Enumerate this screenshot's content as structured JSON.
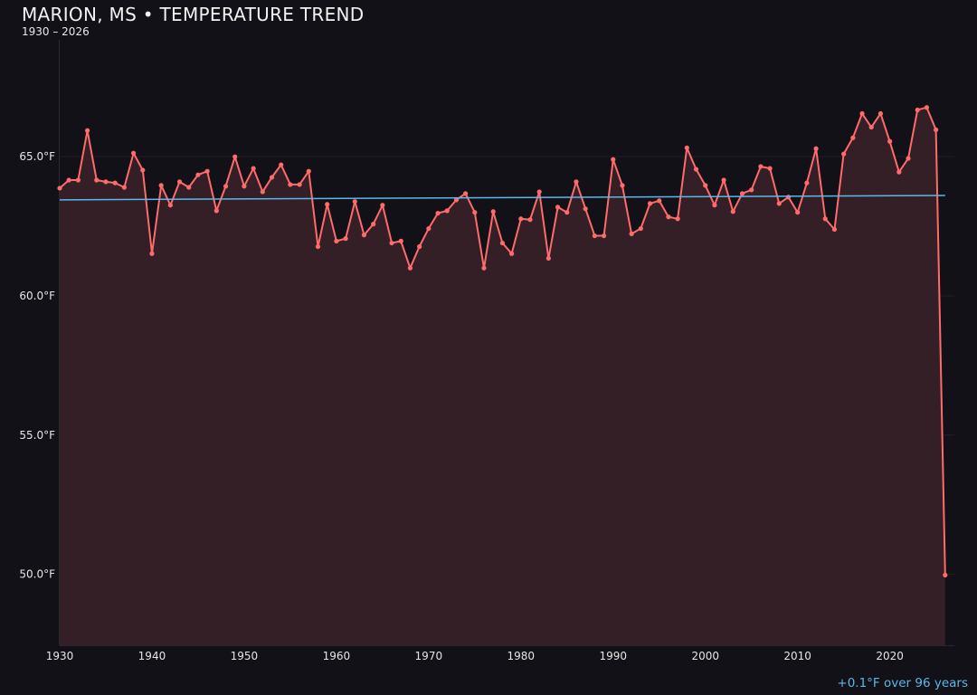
{
  "chart_data": {
    "type": "line",
    "title": "MARION, MS • TEMPERATURE TREND",
    "subtitle": "1930 – 2026",
    "annotation": "+0.1°F over 96 years",
    "xlabel": "",
    "ylabel": "",
    "xlim": [
      1930,
      2027
    ],
    "ylim": [
      47.45,
      69.2
    ],
    "grid": true,
    "x_ticks": [
      1930,
      1940,
      1950,
      1960,
      1970,
      1980,
      1990,
      2000,
      2010,
      2020
    ],
    "y_ticks": [
      50,
      55,
      60,
      65
    ],
    "y_tick_labels": [
      "50.0°F",
      "55.0°F",
      "60.0°F",
      "65.0°F"
    ],
    "colors": {
      "series": "#ff6b6b",
      "fill": "#351f26",
      "trend": "#5bb8e8",
      "background": "#121117"
    },
    "x": [
      1930,
      1931,
      1932,
      1933,
      1934,
      1935,
      1936,
      1937,
      1938,
      1939,
      1940,
      1941,
      1942,
      1943,
      1944,
      1945,
      1946,
      1947,
      1948,
      1949,
      1950,
      1951,
      1952,
      1953,
      1954,
      1955,
      1956,
      1957,
      1958,
      1959,
      1960,
      1961,
      1962,
      1963,
      1964,
      1965,
      1966,
      1967,
      1968,
      1969,
      1970,
      1971,
      1972,
      1973,
      1974,
      1975,
      1976,
      1977,
      1978,
      1979,
      1980,
      1981,
      1982,
      1983,
      1984,
      1985,
      1986,
      1987,
      1988,
      1989,
      1990,
      1991,
      1992,
      1993,
      1994,
      1995,
      1996,
      1997,
      1998,
      1999,
      2000,
      2001,
      2002,
      2003,
      2004,
      2005,
      2006,
      2007,
      2008,
      2009,
      2010,
      2011,
      2012,
      2013,
      2014,
      2015,
      2016,
      2017,
      2018,
      2019,
      2020,
      2021,
      2022,
      2023,
      2024,
      2025,
      2026
    ],
    "series": [
      {
        "values": [
          63.87,
          64.16,
          64.16,
          65.94,
          64.16,
          64.1,
          64.06,
          63.9,
          65.13,
          64.52,
          61.52,
          63.97,
          63.26,
          64.1,
          63.9,
          64.35,
          64.48,
          63.06,
          63.94,
          65.0,
          63.94,
          64.58,
          63.74,
          64.26,
          64.71,
          64.0,
          64.0,
          64.48,
          61.77,
          63.29,
          61.97,
          62.06,
          63.39,
          62.19,
          62.58,
          63.26,
          61.9,
          61.97,
          61.0,
          61.77,
          62.42,
          62.97,
          63.06,
          63.45,
          63.68,
          63.0,
          61.0,
          63.03,
          61.9,
          61.52,
          62.77,
          62.74,
          63.74,
          61.35,
          63.19,
          63.0,
          64.1,
          63.13,
          62.16,
          62.16,
          64.9,
          63.97,
          62.23,
          62.42,
          63.32,
          63.42,
          62.84,
          62.77,
          65.32,
          64.55,
          63.97,
          63.26,
          64.16,
          63.03,
          63.68,
          63.81,
          64.65,
          64.58,
          63.32,
          63.55,
          63.0,
          64.06,
          65.29,
          62.77,
          62.39,
          65.1,
          65.68,
          66.55,
          66.06,
          66.55,
          65.55,
          64.45,
          64.94,
          66.68,
          66.77,
          65.97,
          49.97
        ]
      }
    ],
    "trend": {
      "x": [
        1930,
        2026
      ],
      "y": [
        63.45,
        63.61
      ]
    }
  }
}
